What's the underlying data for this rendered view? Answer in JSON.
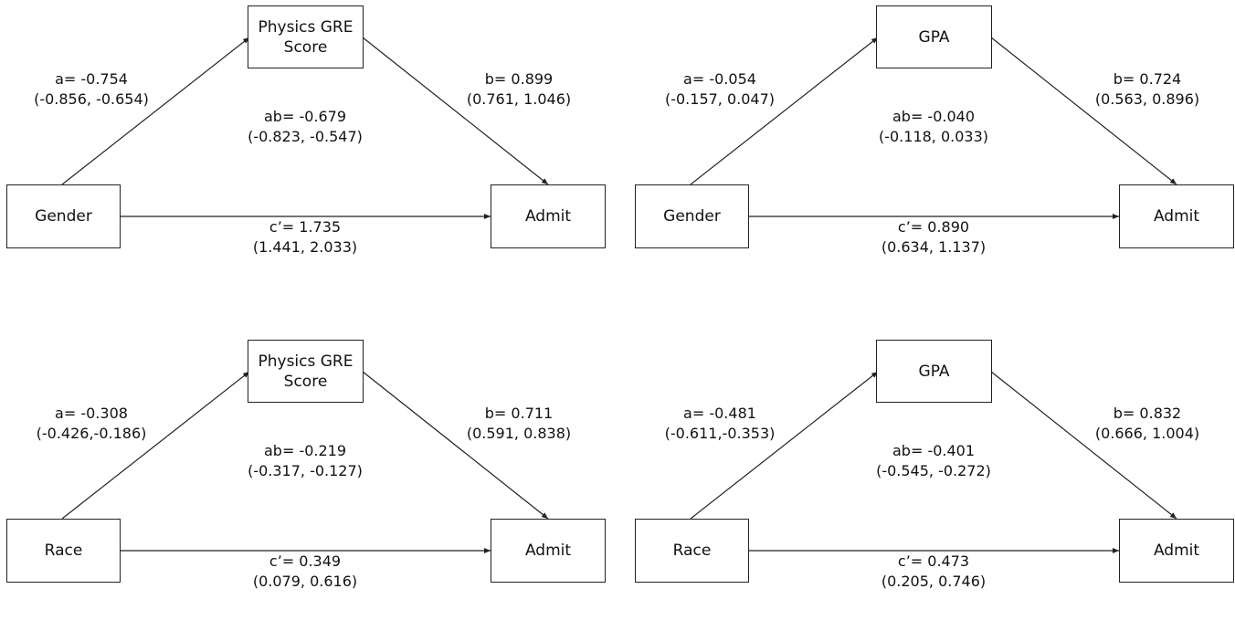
{
  "panels": [
    {
      "mediator": "Physics GRE\nScore",
      "independent": "Gender",
      "outcome": "Admit",
      "a": {
        "coef": "a= -0.754",
        "ci": "(-0.856, -0.654)"
      },
      "b": {
        "coef": "b= 0.899",
        "ci": "(0.761, 1.046)"
      },
      "ab": {
        "coef": "ab= -0.679",
        "ci": "(-0.823, -0.547)"
      },
      "c": {
        "coef": "c’= 1.735",
        "ci": "(1.441, 2.033)"
      }
    },
    {
      "mediator": "GPA",
      "independent": "Gender",
      "outcome": "Admit",
      "a": {
        "coef": "a= -0.054",
        "ci": "(-0.157, 0.047)"
      },
      "b": {
        "coef": "b= 0.724",
        "ci": "(0.563, 0.896)"
      },
      "ab": {
        "coef": "ab= -0.040",
        "ci": "(-0.118, 0.033)"
      },
      "c": {
        "coef": "c’= 0.890",
        "ci": "(0.634, 1.137)"
      }
    },
    {
      "mediator": "Physics GRE\nScore",
      "independent": "Race",
      "outcome": "Admit",
      "a": {
        "coef": "a= -0.308",
        "ci": "(-0.426,-0.186)"
      },
      "b": {
        "coef": "b= 0.711",
        "ci": "(0.591, 0.838)"
      },
      "ab": {
        "coef": "ab= -0.219",
        "ci": "(-0.317, -0.127)"
      },
      "c": {
        "coef": "c’= 0.349",
        "ci": "(0.079, 0.616)"
      }
    },
    {
      "mediator": "GPA",
      "independent": "Race",
      "outcome": "Admit",
      "a": {
        "coef": "a= -0.481",
        "ci": "(-0.611,-0.353)"
      },
      "b": {
        "coef": "b= 0.832",
        "ci": "(0.666, 1.004)"
      },
      "ab": {
        "coef": "ab= -0.401",
        "ci": "(-0.545, -0.272)"
      },
      "c": {
        "coef": "c’= 0.473",
        "ci": "(0.205, 0.746)"
      }
    }
  ]
}
